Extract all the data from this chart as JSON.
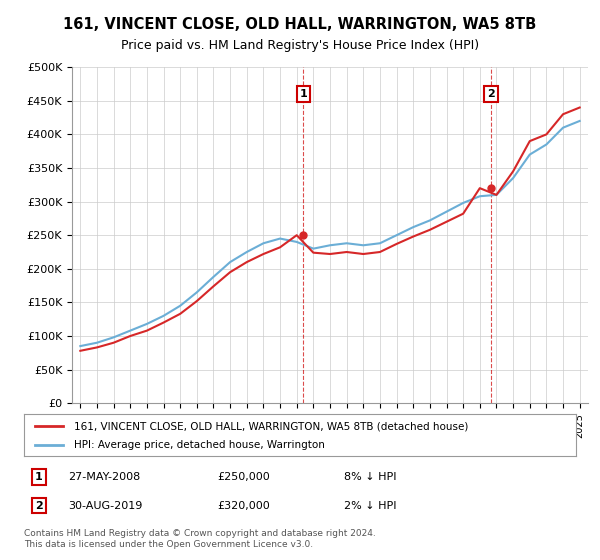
{
  "title": "161, VINCENT CLOSE, OLD HALL, WARRINGTON, WA5 8TB",
  "subtitle": "Price paid vs. HM Land Registry's House Price Index (HPI)",
  "legend_line1": "161, VINCENT CLOSE, OLD HALL, WARRINGTON, WA5 8TB (detached house)",
  "legend_line2": "HPI: Average price, detached house, Warrington",
  "annotation1_label": "1",
  "annotation1_date": "27-MAY-2008",
  "annotation1_price": "£250,000",
  "annotation1_hpi": "8% ↓ HPI",
  "annotation2_label": "2",
  "annotation2_date": "30-AUG-2019",
  "annotation2_price": "£320,000",
  "annotation2_hpi": "2% ↓ HPI",
  "footer1": "Contains HM Land Registry data © Crown copyright and database right 2024.",
  "footer2": "This data is licensed under the Open Government Licence v3.0.",
  "hpi_color": "#6baed6",
  "price_color": "#d62728",
  "marker_color_red": "#d62728",
  "annotation_box_color": "#cc0000",
  "background_color": "#ffffff",
  "grid_color": "#cccccc",
  "ylim": [
    0,
    500000
  ],
  "yticks": [
    0,
    50000,
    100000,
    150000,
    200000,
    250000,
    300000,
    350000,
    400000,
    450000,
    500000
  ],
  "hpi_years": [
    1995,
    1996,
    1997,
    1998,
    1999,
    2000,
    2001,
    2002,
    2003,
    2004,
    2005,
    2006,
    2007,
    2008,
    2009,
    2010,
    2011,
    2012,
    2013,
    2014,
    2015,
    2016,
    2017,
    2018,
    2019,
    2020,
    2021,
    2022,
    2023,
    2024,
    2025
  ],
  "hpi_values": [
    85000,
    90000,
    98000,
    108000,
    118000,
    130000,
    145000,
    165000,
    188000,
    210000,
    225000,
    238000,
    245000,
    240000,
    230000,
    235000,
    238000,
    235000,
    238000,
    250000,
    262000,
    272000,
    285000,
    298000,
    308000,
    310000,
    335000,
    370000,
    385000,
    410000,
    420000
  ],
  "price_years": [
    1995,
    1996,
    1997,
    1998,
    1999,
    2000,
    2001,
    2002,
    2003,
    2004,
    2005,
    2006,
    2007,
    2008,
    2009,
    2010,
    2011,
    2012,
    2013,
    2014,
    2015,
    2016,
    2017,
    2018,
    2019,
    2020,
    2021,
    2022,
    2023,
    2024,
    2025
  ],
  "price_values": [
    78000,
    83000,
    90000,
    100000,
    108000,
    120000,
    133000,
    152000,
    174000,
    195000,
    210000,
    222000,
    232000,
    250000,
    224000,
    222000,
    225000,
    222000,
    225000,
    237000,
    248000,
    258000,
    270000,
    282000,
    320000,
    310000,
    345000,
    390000,
    400000,
    430000,
    440000
  ],
  "sale1_year": 2008.4,
  "sale1_price": 250000,
  "sale2_year": 2019.67,
  "sale2_price": 320000,
  "dashed_line1_year": 2008.4,
  "dashed_line2_year": 2019.67,
  "xlim_left": 1994.5,
  "xlim_right": 2025.5
}
